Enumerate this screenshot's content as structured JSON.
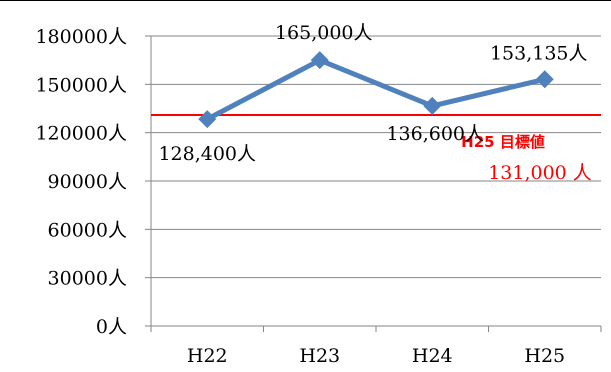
{
  "chart_data": {
    "type": "line",
    "categories": [
      "H22",
      "H23",
      "H24",
      "H25"
    ],
    "series": [
      {
        "values": [
          128400,
          165000,
          136600,
          153135
        ],
        "color": "#4F81BD"
      }
    ],
    "data_labels": [
      "128,400人",
      "165,000人",
      "136,600人",
      "153,135人"
    ],
    "y_ticks": [
      0,
      30000,
      60000,
      90000,
      120000,
      150000,
      180000
    ],
    "y_tick_labels": [
      "0人",
      "30000人",
      "60000人",
      "90000人",
      "120000人",
      "150000人",
      "180000人"
    ],
    "ylim": [
      0,
      180000
    ],
    "grid": true,
    "legend": "none",
    "target": {
      "value": 131000,
      "caption": "H25 目標値",
      "value_label": "131,000 人",
      "color": "#FF0000"
    }
  }
}
